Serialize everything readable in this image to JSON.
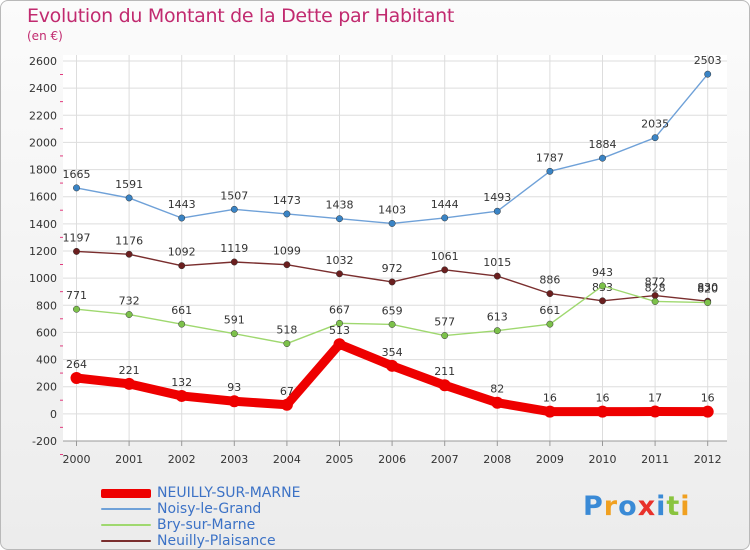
{
  "chart_data": {
    "type": "line",
    "title": "Evolution du Montant de la Dette par Habitant",
    "subtitle": "(en €)",
    "x": [
      "2000",
      "2001",
      "2002",
      "2003",
      "2004",
      "2005",
      "2006",
      "2007",
      "2008",
      "2009",
      "2010",
      "2011",
      "2012"
    ],
    "ylim": [
      -200,
      2600
    ],
    "yticks": [
      -200,
      0,
      200,
      400,
      600,
      800,
      1000,
      1200,
      1400,
      1600,
      1800,
      2000,
      2200,
      2400,
      2600
    ],
    "grid": true,
    "legend_position": "bottom-left",
    "series": [
      {
        "name": "Noisy-le-Grand",
        "color": "#6fa1d8",
        "marker": "#3a84c5",
        "values": [
          1665,
          1591,
          1443,
          1507,
          1473,
          1438,
          1403,
          1444,
          1493,
          1787,
          1884,
          2035,
          2503
        ]
      },
      {
        "name": "Neuilly-Plaisance",
        "color": "#7a2e2e",
        "marker": "#6b1f1f",
        "values": [
          1197,
          1176,
          1092,
          1119,
          1099,
          1032,
          972,
          1061,
          1015,
          886,
          833,
          872,
          830
        ]
      },
      {
        "name": "Bry-sur-Marne",
        "color": "#9fd86f",
        "marker": "#7cc14a",
        "values": [
          771,
          732,
          661,
          591,
          518,
          667,
          659,
          577,
          613,
          661,
          943,
          828,
          820
        ]
      },
      {
        "name": "NEUILLY-SUR-MARNE",
        "color": "#ee0000",
        "marker": "#ee0000",
        "values": [
          264,
          221,
          132,
          93,
          67,
          513,
          354,
          211,
          82,
          16,
          16,
          17,
          16
        ]
      }
    ]
  },
  "legend": {
    "items": [
      {
        "label": "NEUILLY-SUR-MARNE",
        "color": "#ee0000"
      },
      {
        "label": "Noisy-le-Grand",
        "color": "#6fa1d8"
      },
      {
        "label": "Bry-sur-Marne",
        "color": "#9fd86f"
      },
      {
        "label": "Neuilly-Plaisance",
        "color": "#7a2e2e"
      }
    ]
  },
  "logo": {
    "text": "Proxiti",
    "letters": [
      {
        "ch": "P",
        "color": "#3a8ad6"
      },
      {
        "ch": "r",
        "color": "#f0a020"
      },
      {
        "ch": "o",
        "color": "#3a8ad6"
      },
      {
        "ch": "x",
        "color": "#e8312b"
      },
      {
        "ch": "i",
        "color": "#3a8ad6"
      },
      {
        "ch": "t",
        "color": "#8ac43f"
      },
      {
        "ch": "i",
        "color": "#f0a020"
      }
    ]
  }
}
